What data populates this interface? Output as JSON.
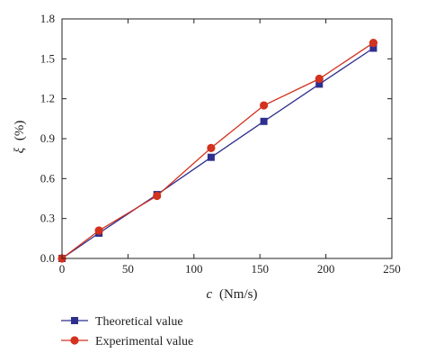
{
  "chart_data": {
    "type": "line",
    "title": "",
    "xlabel": "c (Nm/s)",
    "xlabel_var": "c",
    "xlabel_unit": "(Nm/s)",
    "ylabel": "ξ (%)",
    "ylabel_var": "ξ",
    "ylabel_unit": "(%)",
    "xlim": [
      0,
      250
    ],
    "ylim": [
      0,
      1.8
    ],
    "xticks": [
      0,
      50,
      100,
      150,
      200,
      250
    ],
    "yticks": [
      "0.0",
      "0.3",
      "0.6",
      "0.9",
      "1.2",
      "1.5",
      "1.8"
    ],
    "grid": false,
    "legend_position": "bottom-left",
    "series": [
      {
        "name": "Theoretical value",
        "marker": "square",
        "color": "#2f2f8f",
        "x": [
          0,
          28,
          72,
          113,
          153,
          195,
          236
        ],
        "y": [
          0.0,
          0.19,
          0.48,
          0.76,
          1.03,
          1.31,
          1.58
        ]
      },
      {
        "name": "Experimental value",
        "marker": "circle",
        "color": "#d2321e",
        "x": [
          0,
          28,
          72,
          113,
          153,
          195,
          236
        ],
        "y": [
          0.0,
          0.21,
          0.47,
          0.83,
          1.15,
          1.35,
          1.62
        ]
      }
    ]
  }
}
